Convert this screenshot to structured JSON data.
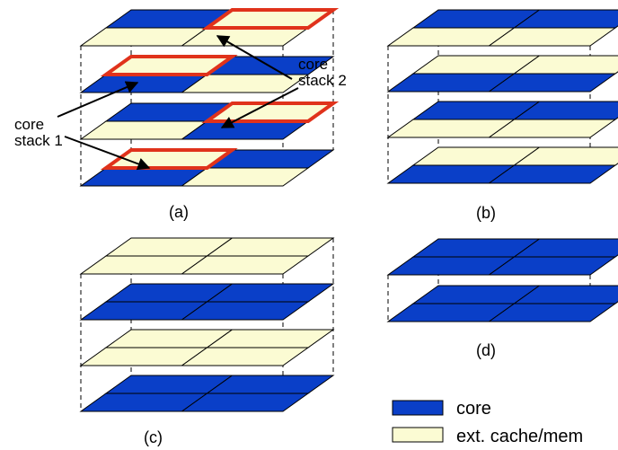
{
  "colors": {
    "core": "#0a3fc8",
    "cache": "#fbfbd3",
    "outline": "#000000",
    "highlight": "#e0321b"
  },
  "captions": {
    "a": "(a)",
    "b": "(b)",
    "c": "(c)",
    "d": "(d)"
  },
  "annotations": {
    "stack1_line1": "core",
    "stack1_line2": "stack 1",
    "stack2_line1": "core",
    "stack2_line2": "stack 2"
  },
  "legend": {
    "core_label": "core",
    "cache_label": "ext. cache/mem"
  },
  "stacks": {
    "a": [
      [
        "core",
        "cache",
        "cache",
        "cache"
      ],
      [
        "cache",
        "core",
        "core",
        "cache"
      ],
      [
        "core",
        "cache",
        "cache",
        "core"
      ],
      [
        "cache",
        "core",
        "core",
        "cache"
      ]
    ],
    "b": [
      [
        "core",
        "core",
        "cache",
        "cache"
      ],
      [
        "cache",
        "cache",
        "core",
        "core"
      ],
      [
        "core",
        "core",
        "cache",
        "cache"
      ],
      [
        "cache",
        "cache",
        "core",
        "core"
      ]
    ],
    "c": [
      [
        "cache",
        "cache",
        "cache",
        "cache"
      ],
      [
        "core",
        "core",
        "core",
        "core"
      ],
      [
        "cache",
        "cache",
        "cache",
        "cache"
      ],
      [
        "core",
        "core",
        "core",
        "core"
      ]
    ],
    "d": [
      [
        "core",
        "core",
        "core",
        "core"
      ],
      [
        "core",
        "core",
        "core",
        "core"
      ]
    ]
  }
}
